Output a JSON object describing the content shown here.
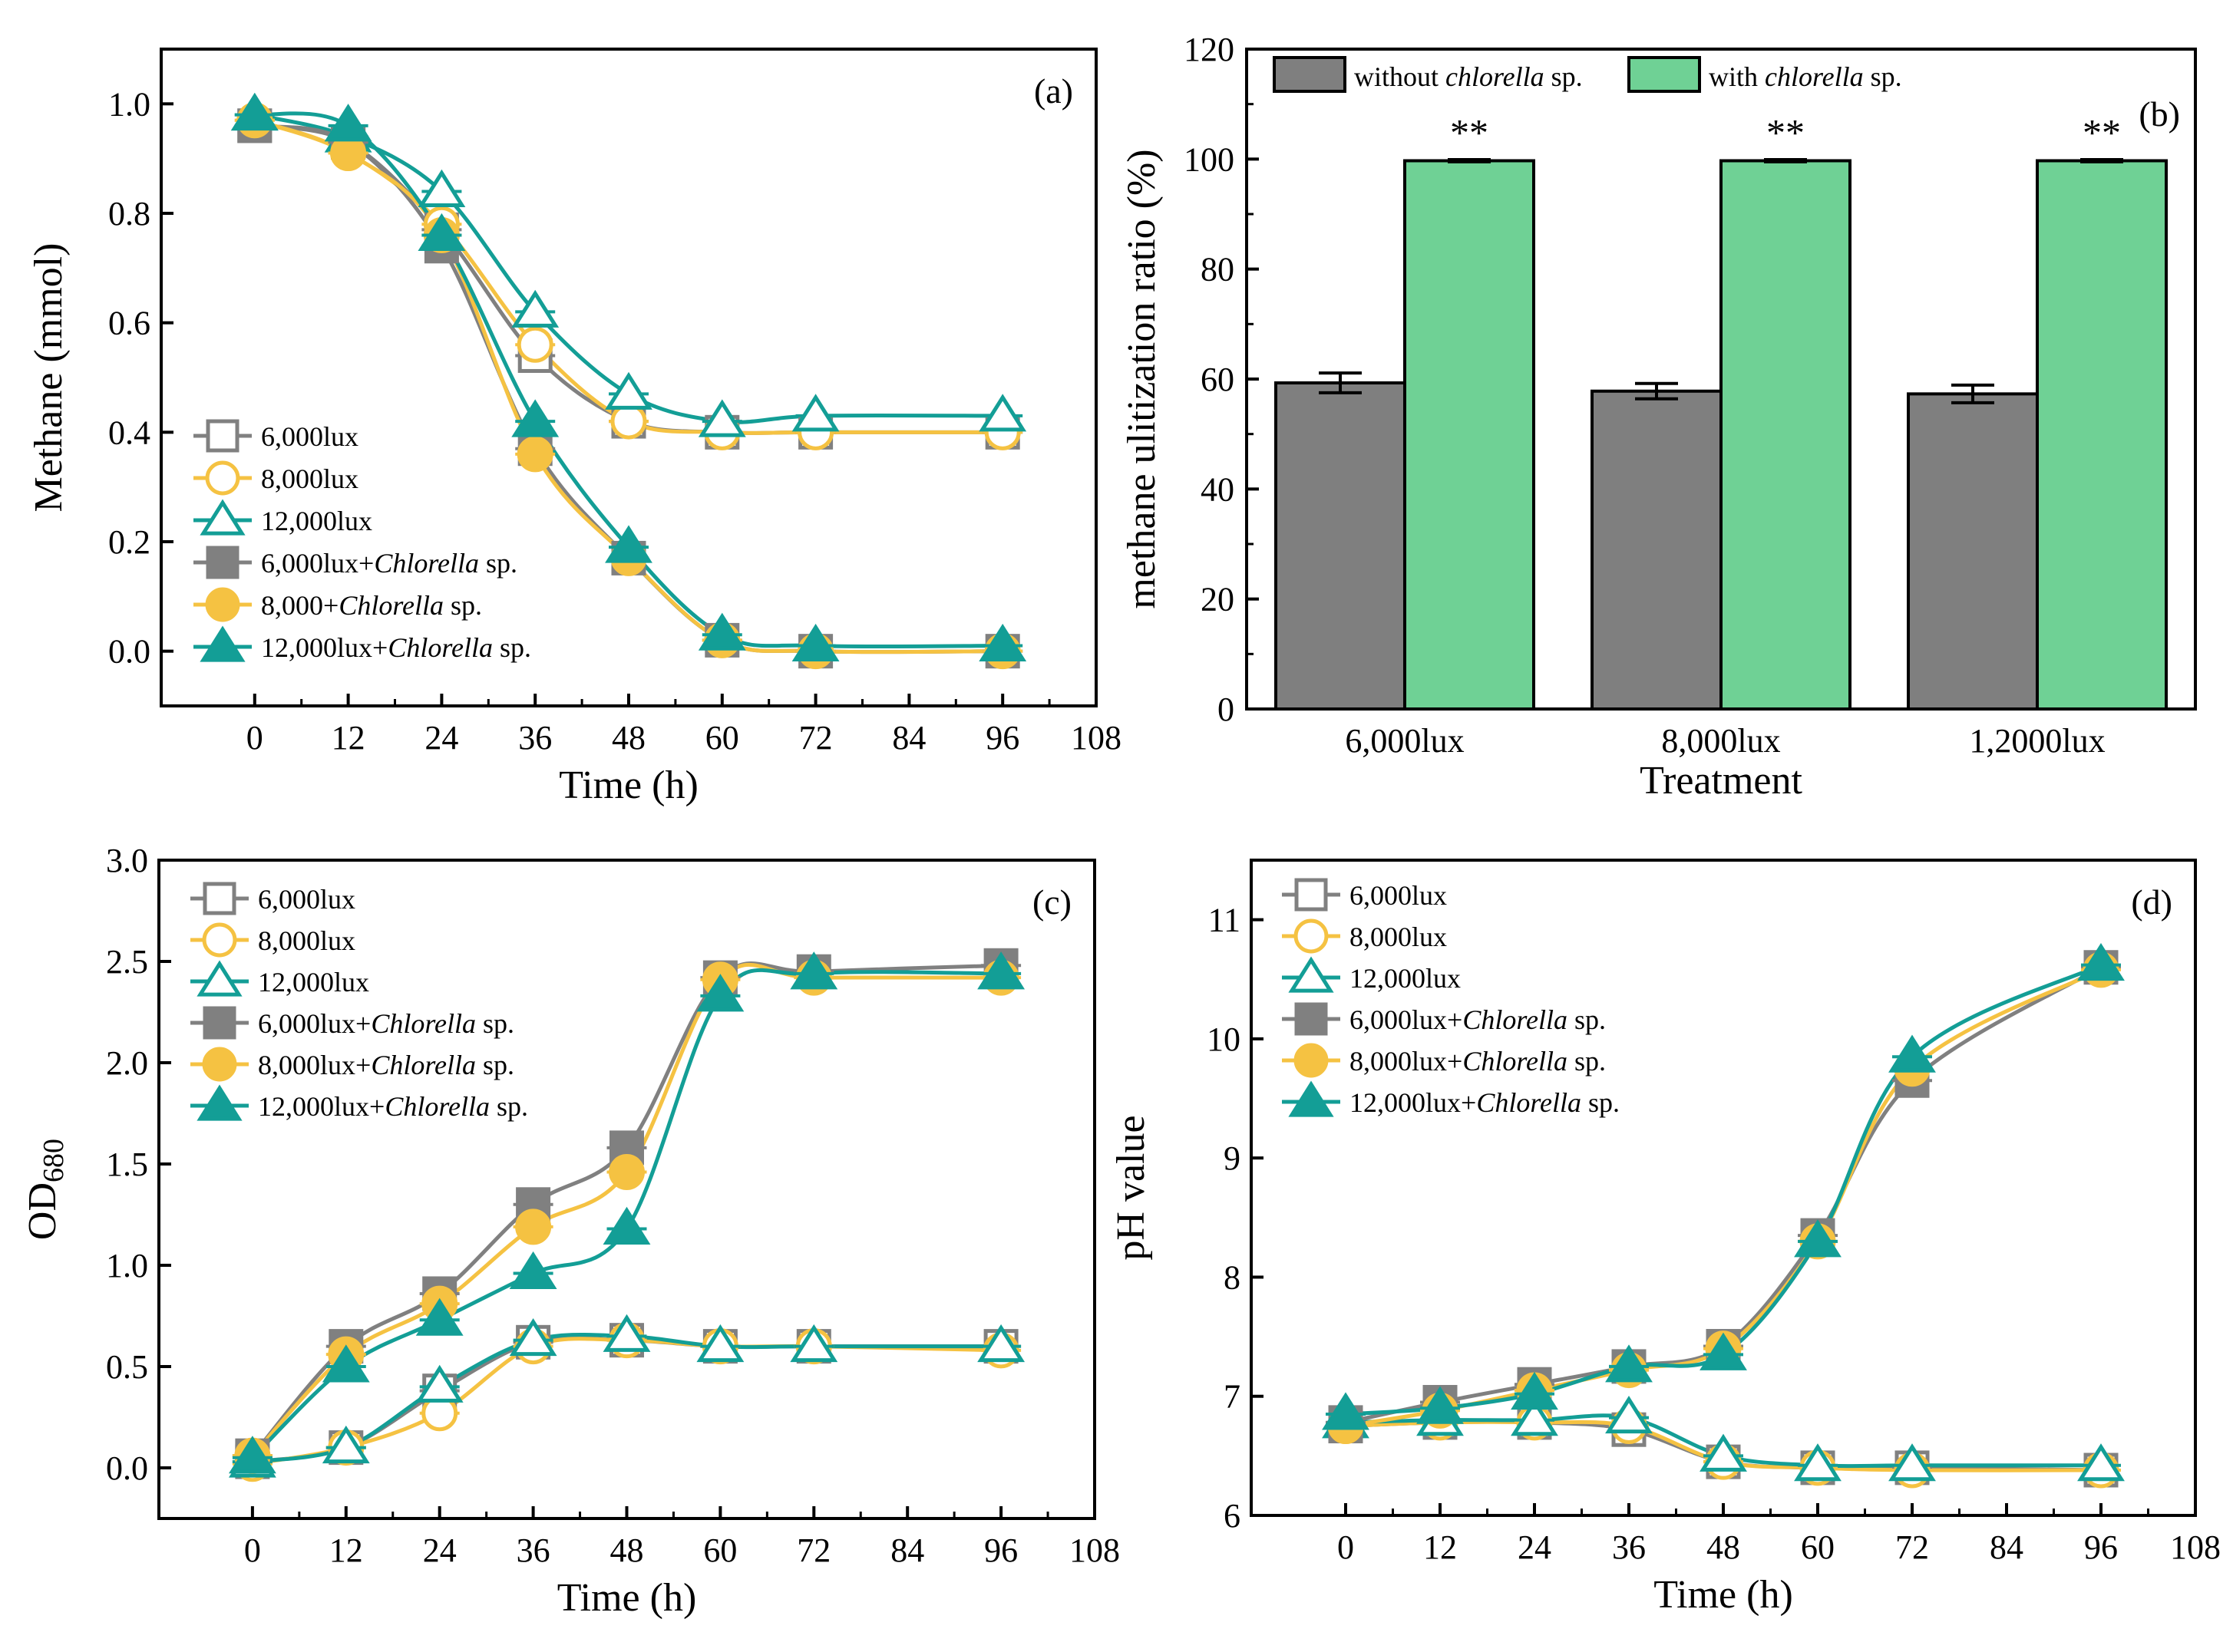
{
  "colors": {
    "gray": "#808080",
    "yellow": "#F5C242",
    "teal": "#139E96",
    "bar_without": "#7F7F7F",
    "bar_with": "#6FD195"
  },
  "chart_data": [
    {
      "panel": "a",
      "type": "line",
      "panel_label": "(a)",
      "xlabel": "Time (h)",
      "ylabel": "Methane (mmol)",
      "xlim": [
        -12,
        108
      ],
      "ylim": [
        -0.1,
        1.1
      ],
      "xticks": [
        "0",
        "12",
        "24",
        "36",
        "48",
        "60",
        "72",
        "84",
        "96",
        "108"
      ],
      "yticks": [
        "0.0",
        "0.2",
        "0.4",
        "0.6",
        "0.8",
        "1.0"
      ],
      "x": [
        0,
        12,
        24,
        36,
        48,
        60,
        72,
        96
      ],
      "series": [
        {
          "name": "6,000lux",
          "color": "gray",
          "marker": "square",
          "filled": false,
          "values": [
            0.96,
            0.93,
            0.77,
            0.54,
            0.42,
            0.4,
            0.4,
            0.4
          ]
        },
        {
          "name": "8,000lux",
          "color": "yellow",
          "marker": "circle",
          "filled": false,
          "values": [
            0.97,
            0.91,
            0.78,
            0.56,
            0.42,
            0.4,
            0.4,
            0.4
          ]
        },
        {
          "name": "12,000lux",
          "color": "teal",
          "marker": "triangle",
          "filled": false,
          "values": [
            0.98,
            0.94,
            0.84,
            0.62,
            0.47,
            0.42,
            0.43,
            0.43
          ]
        },
        {
          "name": "6,000lux+Chlorella sp.",
          "color": "gray",
          "marker": "square",
          "filled": true,
          "values": [
            0.96,
            0.93,
            0.74,
            0.37,
            0.17,
            0.02,
            0.0,
            0.0
          ]
        },
        {
          "name": "8,000+Chlorella sp.",
          "color": "yellow",
          "marker": "circle",
          "filled": true,
          "values": [
            0.97,
            0.91,
            0.76,
            0.36,
            0.17,
            0.02,
            0.0,
            0.0
          ]
        },
        {
          "name": "12,000lux+Chlorella sp.",
          "color": "teal",
          "marker": "triangle",
          "filled": true,
          "values": [
            0.98,
            0.96,
            0.76,
            0.42,
            0.19,
            0.03,
            0.01,
            0.01
          ]
        }
      ]
    },
    {
      "panel": "b",
      "type": "bar",
      "panel_label": "(b)",
      "xlabel": "Treatment",
      "ylabel": "methane ulitization ratio (%)",
      "ylim": [
        0,
        120
      ],
      "yticks": [
        "0",
        "20",
        "40",
        "60",
        "80",
        "100",
        "120"
      ],
      "categories": [
        "6,000lux",
        "8,000lux",
        "1,2000lux"
      ],
      "series": [
        {
          "name": "without chlorella sp.",
          "color": "bar_without",
          "values": [
            59.3,
            57.8,
            57.3
          ],
          "errors": [
            1.8,
            1.4,
            1.6
          ]
        },
        {
          "name": "with chlorella sp.",
          "color": "bar_with",
          "values": [
            99.7,
            99.7,
            99.7
          ],
          "errors": [
            0.2,
            0.2,
            0.2
          ]
        }
      ],
      "annotations": [
        "**",
        "**",
        "**"
      ]
    },
    {
      "panel": "c",
      "type": "line",
      "panel_label": "(c)",
      "xlabel": "Time (h)",
      "ylabel": "OD680",
      "xlim": [
        -12,
        108
      ],
      "ylim": [
        -0.25,
        3.0
      ],
      "xticks": [
        "0",
        "12",
        "24",
        "36",
        "48",
        "60",
        "72",
        "84",
        "96",
        "108"
      ],
      "yticks": [
        "0.0",
        "0.5",
        "1.0",
        "1.5",
        "2.0",
        "2.5",
        "3.0"
      ],
      "x": [
        0,
        12,
        24,
        36,
        48,
        60,
        72,
        96
      ],
      "series": [
        {
          "name": "6,000lux",
          "color": "gray",
          "marker": "square",
          "filled": false,
          "values": [
            0.03,
            0.1,
            0.38,
            0.62,
            0.63,
            0.6,
            0.6,
            0.6
          ]
        },
        {
          "name": "8,000lux",
          "color": "yellow",
          "marker": "circle",
          "filled": false,
          "values": [
            0.02,
            0.1,
            0.27,
            0.6,
            0.63,
            0.6,
            0.6,
            0.58
          ]
        },
        {
          "name": "12,000lux",
          "color": "teal",
          "marker": "triangle",
          "filled": false,
          "values": [
            0.03,
            0.1,
            0.4,
            0.63,
            0.65,
            0.6,
            0.6,
            0.6
          ]
        },
        {
          "name": "6,000lux+Chlorella sp.",
          "color": "gray",
          "marker": "square",
          "filled": true,
          "values": [
            0.06,
            0.6,
            0.86,
            1.3,
            1.58,
            2.42,
            2.45,
            2.48
          ]
        },
        {
          "name": "8,000lux+Chlorella sp.",
          "color": "yellow",
          "marker": "circle",
          "filled": true,
          "values": [
            0.06,
            0.56,
            0.81,
            1.19,
            1.46,
            2.41,
            2.42,
            2.42
          ]
        },
        {
          "name": "12,000lux+Chlorella sp.",
          "color": "teal",
          "marker": "triangle",
          "filled": true,
          "values": [
            0.05,
            0.5,
            0.73,
            0.96,
            1.18,
            2.33,
            2.44,
            2.44
          ]
        }
      ]
    },
    {
      "panel": "d",
      "type": "line",
      "panel_label": "(d)",
      "xlabel": "Time (h)",
      "ylabel": "pH value",
      "xlim": [
        -12,
        108
      ],
      "ylim": [
        6,
        11.5
      ],
      "xticks": [
        "0",
        "12",
        "24",
        "36",
        "48",
        "60",
        "72",
        "84",
        "96",
        "108"
      ],
      "yticks": [
        "6",
        "7",
        "8",
        "9",
        "10",
        "11"
      ],
      "x": [
        0,
        12,
        24,
        36,
        48,
        60,
        72,
        96
      ],
      "series": [
        {
          "name": "6,000lux",
          "color": "gray",
          "marker": "square",
          "filled": false,
          "values": [
            6.75,
            6.78,
            6.78,
            6.72,
            6.45,
            6.4,
            6.4,
            6.38
          ]
        },
        {
          "name": "8,000lux",
          "color": "yellow",
          "marker": "circle",
          "filled": false,
          "values": [
            6.75,
            6.78,
            6.78,
            6.75,
            6.45,
            6.4,
            6.38,
            6.38
          ]
        },
        {
          "name": "12,000lux",
          "color": "teal",
          "marker": "triangle",
          "filled": false,
          "values": [
            6.78,
            6.8,
            6.8,
            6.82,
            6.5,
            6.42,
            6.42,
            6.42
          ]
        },
        {
          "name": "6,000lux+Chlorella sp.",
          "color": "gray",
          "marker": "square",
          "filled": true,
          "values": [
            6.78,
            6.95,
            7.1,
            7.25,
            7.42,
            8.35,
            9.65,
            10.6
          ]
        },
        {
          "name": "8,000lux+Chlorella sp.",
          "color": "yellow",
          "marker": "circle",
          "filled": true,
          "values": [
            6.75,
            6.88,
            7.05,
            7.22,
            7.4,
            8.3,
            9.75,
            10.58
          ]
        },
        {
          "name": "12,000lux+Chlorella sp.",
          "color": "teal",
          "marker": "triangle",
          "filled": true,
          "values": [
            6.85,
            6.9,
            7.02,
            7.25,
            7.35,
            8.3,
            9.85,
            10.62
          ]
        }
      ]
    }
  ]
}
